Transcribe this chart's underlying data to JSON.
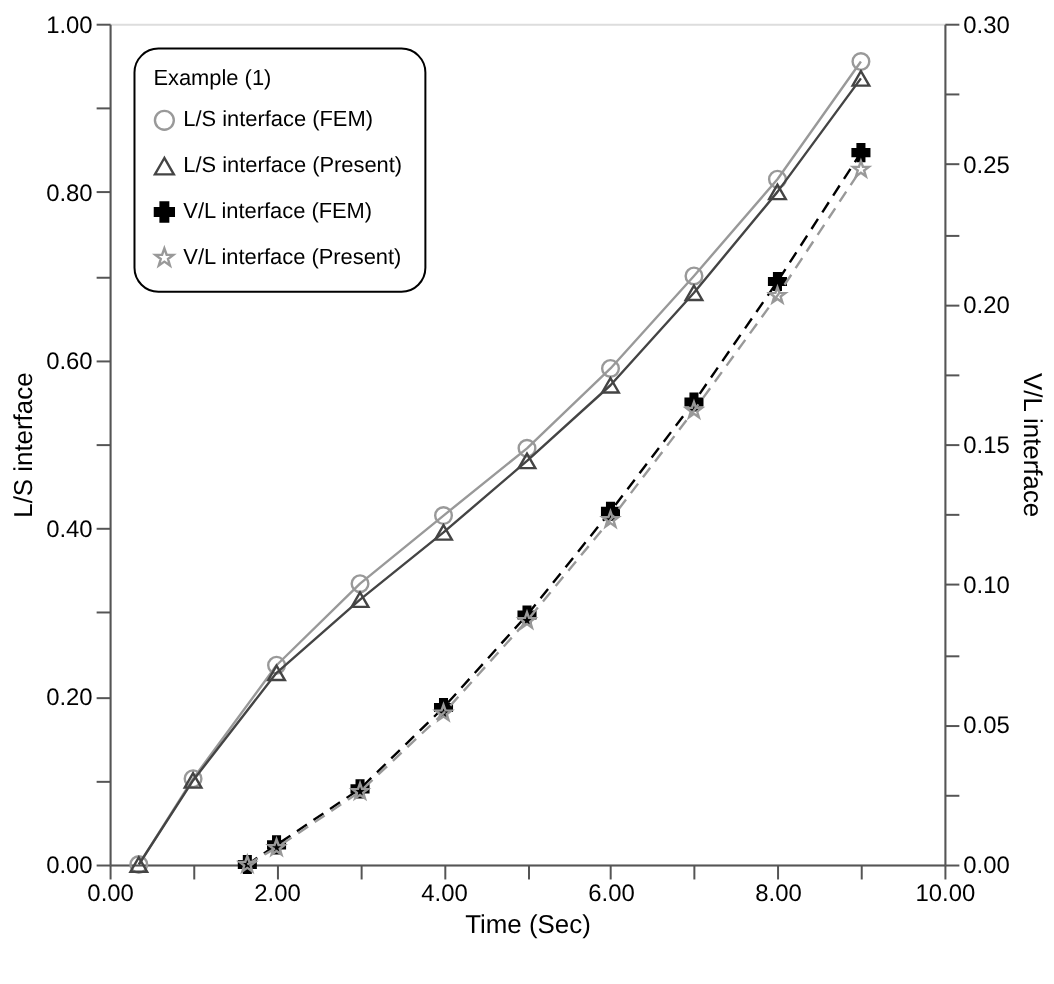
{
  "chart_data": {
    "type": "line",
    "xlabel": "Time (Sec)",
    "ylabel": "L/S interface",
    "y2label": "V/L interface",
    "legend_title": "Example (1)",
    "legend": "top left",
    "grid": false,
    "xlim": [
      0,
      10
    ],
    "ylim": [
      0,
      1
    ],
    "y2lim": [
      0,
      0.3
    ],
    "xticks": [
      {
        "value": 0,
        "label": "0.00"
      },
      {
        "value": 1,
        "label": null
      },
      {
        "value": 2,
        "label": "2.00"
      },
      {
        "value": 3,
        "label": null
      },
      {
        "value": 4,
        "label": "4.00"
      },
      {
        "value": 5,
        "label": null
      },
      {
        "value": 6,
        "label": "6.00"
      },
      {
        "value": 7,
        "label": null
      },
      {
        "value": 8,
        "label": "8.00"
      },
      {
        "value": 9,
        "label": null
      },
      {
        "value": 10,
        "label": "10.00"
      }
    ],
    "yticks": [
      {
        "value": 0,
        "label": "0.00"
      },
      {
        "value": 0.1,
        "label": null
      },
      {
        "value": 0.2,
        "label": "0.20"
      },
      {
        "value": 0.3,
        "label": null
      },
      {
        "value": 0.4,
        "label": "0.40"
      },
      {
        "value": 0.5,
        "label": null
      },
      {
        "value": 0.6,
        "label": "0.60"
      },
      {
        "value": 0.7,
        "label": null
      },
      {
        "value": 0.8,
        "label": "0.80"
      },
      {
        "value": 0.9,
        "label": null
      },
      {
        "value": 1,
        "label": "1.00"
      }
    ],
    "y2ticks": [
      {
        "value": 0,
        "label": "0.00"
      },
      {
        "value": 0.025,
        "label": null
      },
      {
        "value": 0.05,
        "label": "0.05"
      },
      {
        "value": 0.075,
        "label": null
      },
      {
        "value": 0.1,
        "label": "0.10"
      },
      {
        "value": 0.125,
        "label": null
      },
      {
        "value": 0.15,
        "label": "0.15"
      },
      {
        "value": 0.175,
        "label": null
      },
      {
        "value": 0.2,
        "label": "0.20"
      },
      {
        "value": 0.225,
        "label": null
      },
      {
        "value": 0.25,
        "label": "0.25"
      },
      {
        "value": 0.275,
        "label": null
      },
      {
        "value": 0.3,
        "label": "0.30"
      }
    ],
    "series": [
      {
        "name": "L/S interface (FEM)",
        "color": "#999999",
        "marker": "circle",
        "line_style": "solid",
        "x": [
          0.35,
          1,
          2,
          3,
          4,
          5,
          6,
          7,
          8,
          9
        ],
        "values": [
          0,
          0.102,
          0.237,
          0.334,
          0.415,
          0.495,
          0.59,
          0.7,
          0.815,
          0.955
        ]
      },
      {
        "name": "L/S interface (Present)",
        "color": "#444444",
        "marker": "triangle",
        "line_style": "solid",
        "x": [
          0.35,
          1,
          2,
          3,
          4,
          5,
          6,
          7,
          8,
          9
        ],
        "values": [
          0,
          0.1,
          0.228,
          0.315,
          0.395,
          0.48,
          0.57,
          0.68,
          0.8,
          0.935
        ]
      },
      {
        "name": "V/L interface (FEM)",
        "color": "#000000",
        "marker": "cross",
        "line_style": "dashed",
        "axis": "y2",
        "x": [
          1.65,
          2,
          3,
          4,
          5,
          6,
          7,
          8,
          9
        ],
        "values": [
          0,
          0.007,
          0.027,
          0.056,
          0.089,
          0.126,
          0.165,
          0.208,
          0.254
        ]
      },
      {
        "name": "V/L interface (Present)",
        "color": "#999999",
        "marker": "star",
        "line_style": "dashed",
        "axis": "y2",
        "x": [
          1.65,
          2,
          3,
          4,
          5,
          6,
          7,
          8,
          9
        ],
        "values": [
          0,
          0.006,
          0.026,
          0.054,
          0.087,
          0.123,
          0.162,
          0.203,
          0.248
        ]
      }
    ]
  }
}
